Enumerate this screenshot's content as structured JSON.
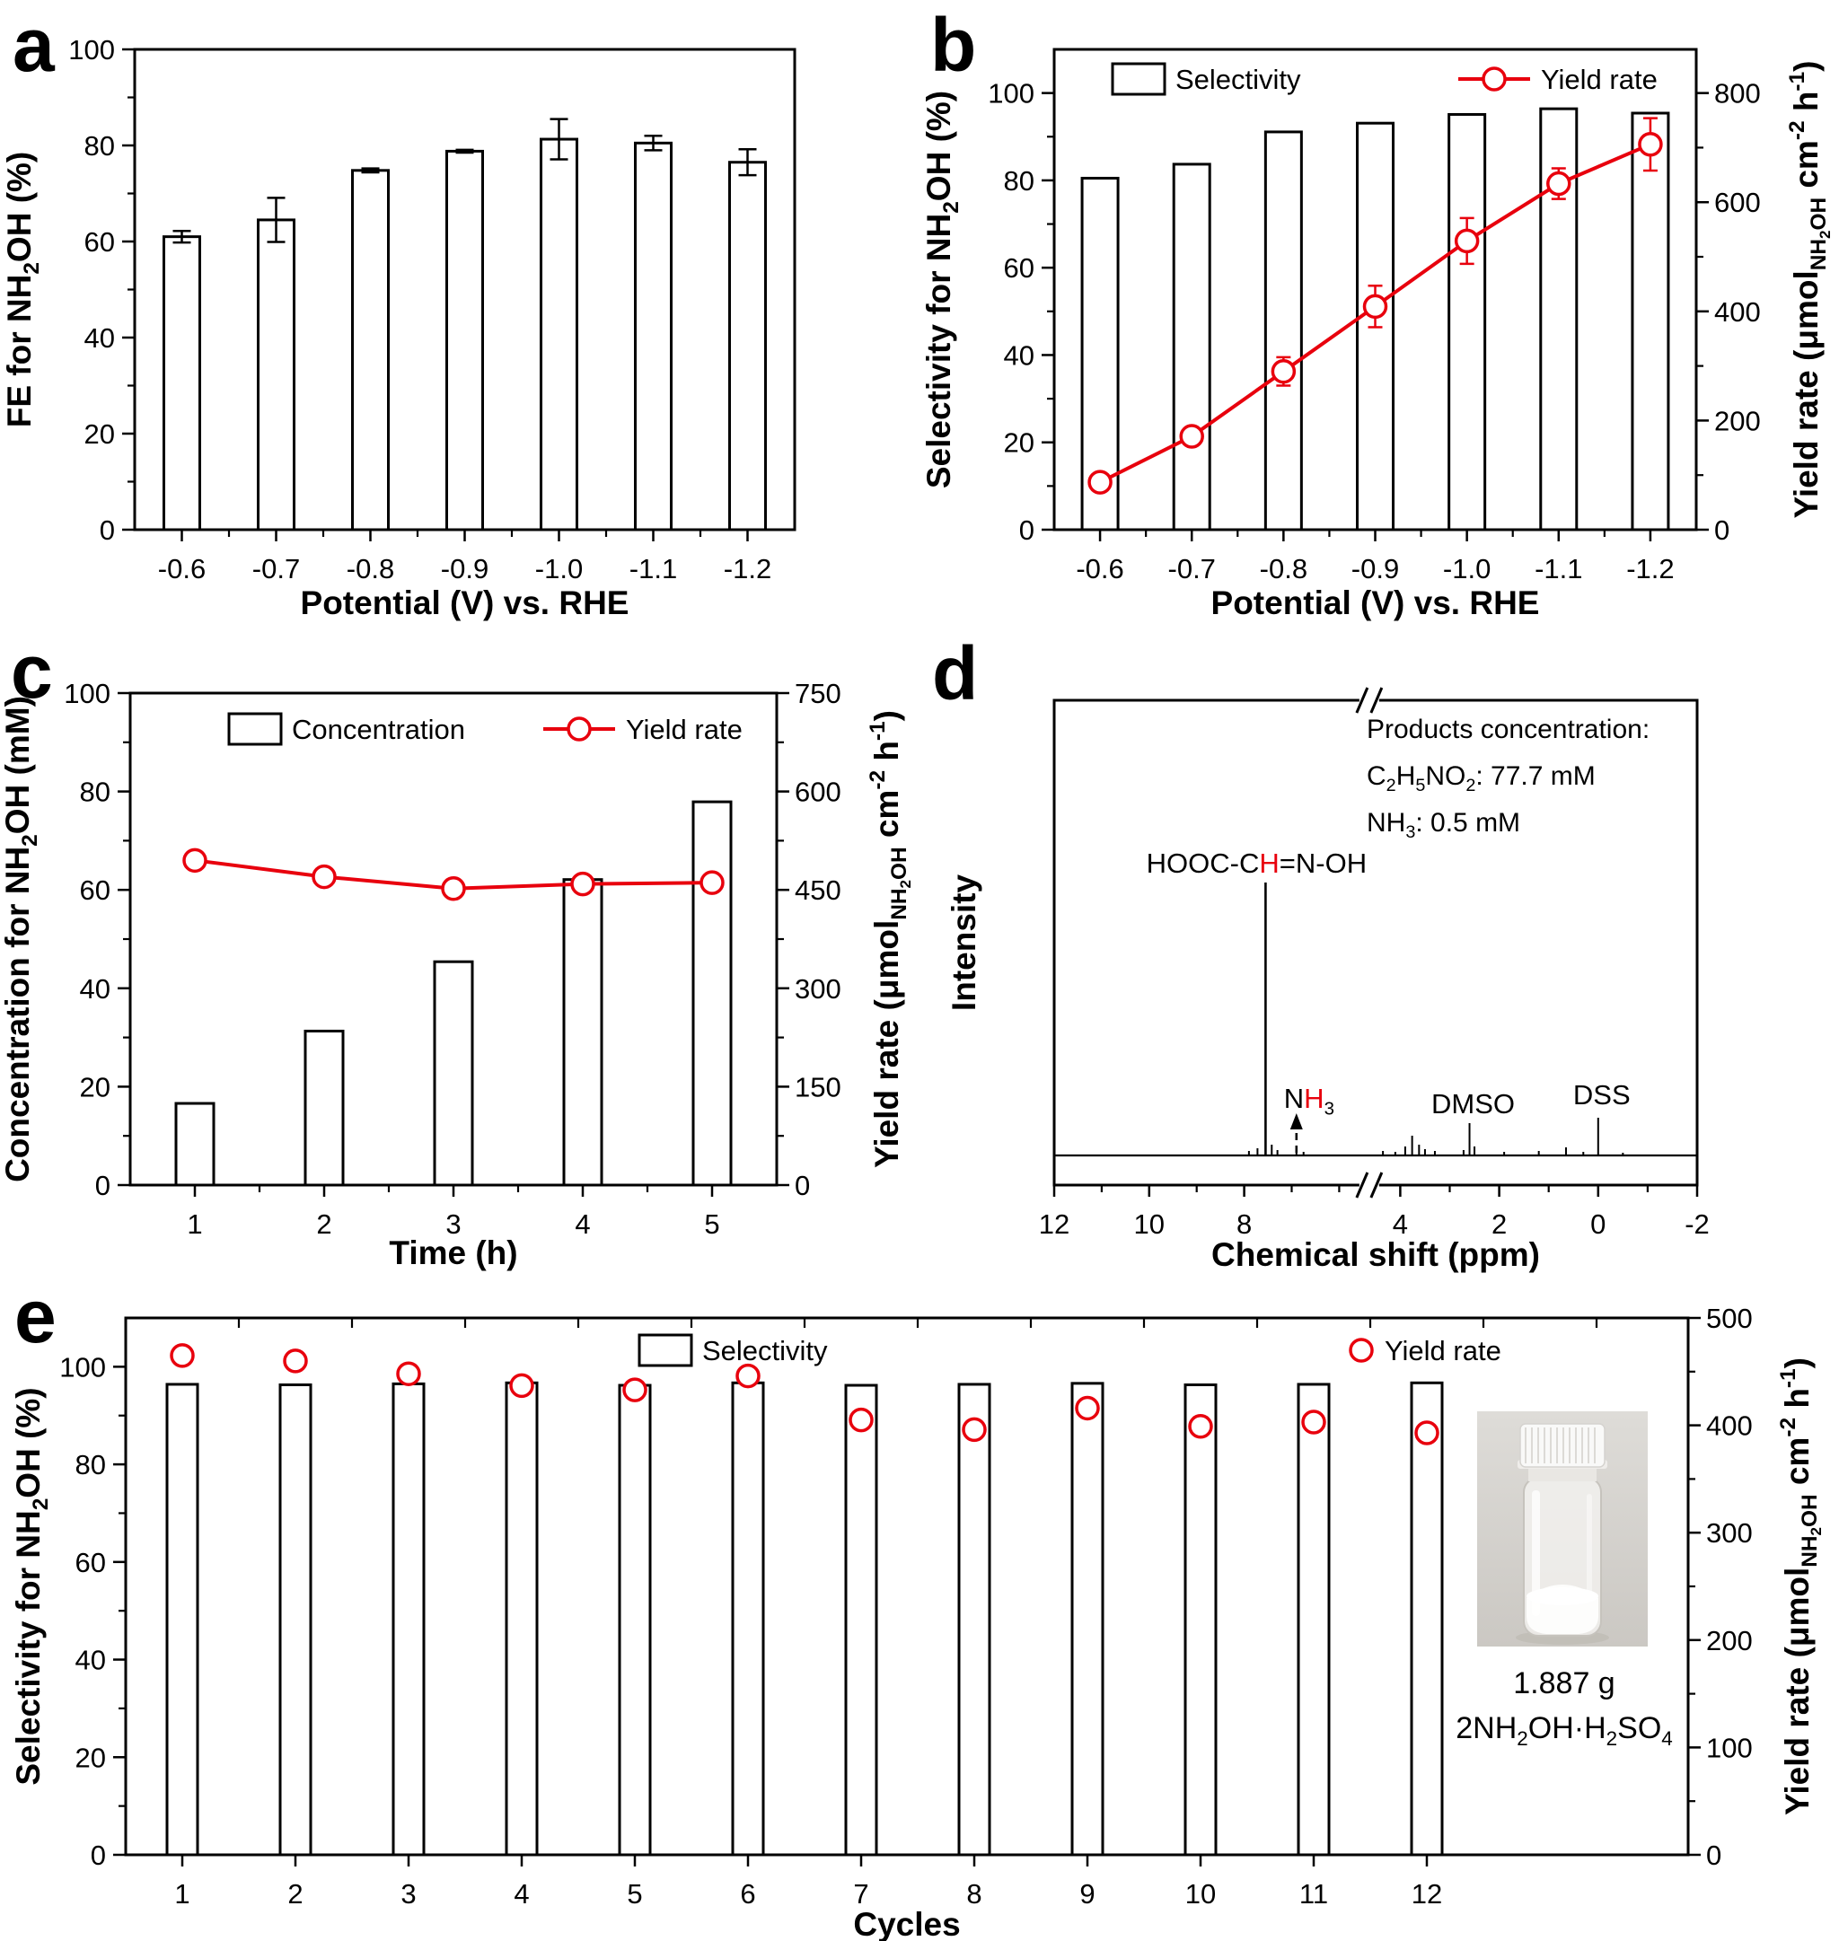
{
  "figure": {
    "background": "#ffffff",
    "black": "#000000",
    "red": "#e8000d",
    "photo_bg_top": "#dedcd8",
    "photo_bg_bottom": "#cbc8c3"
  },
  "chart_data": [
    {
      "panel_letter": "a",
      "type": "bar",
      "xlabel": "Potential (V) vs. RHE",
      "ylabel_segments": [
        {
          "t": "FE for NH"
        },
        {
          "t": "2",
          "style": "sub"
        },
        {
          "t": "OH (%)"
        }
      ],
      "categories": [
        "-0.6",
        "-0.7",
        "-0.8",
        "-0.9",
        "-1.0",
        "-1.1",
        "-1.2"
      ],
      "values": [
        61,
        64.5,
        74.8,
        78.8,
        81.3,
        80.5,
        76.5
      ],
      "errors": [
        1.2,
        4.6,
        0.4,
        0.3,
        4.2,
        1.5,
        2.7
      ],
      "ylim": [
        0,
        100
      ],
      "yticks": [
        0,
        20,
        40,
        60,
        80,
        100
      ],
      "yminor": 10
    },
    {
      "panel_letter": "b",
      "type": "bar+line",
      "xlabel": "Potential (V) vs. RHE",
      "ylabel_segments": [
        {
          "t": "Selectivity for NH"
        },
        {
          "t": "2",
          "style": "sub"
        },
        {
          "t": "OH (%)"
        }
      ],
      "y2label_segments": [
        {
          "t": "Yield rate (μmol"
        },
        {
          "t": "NH",
          "style": "sub"
        },
        {
          "t": "2",
          "style": "subsub"
        },
        {
          "t": "OH",
          "style": "sub"
        },
        {
          "t": " cm"
        },
        {
          "t": "-2",
          "style": "sup"
        },
        {
          "t": " h"
        },
        {
          "t": "-1",
          "style": "sup"
        },
        {
          "t": ")"
        }
      ],
      "categories": [
        "-0.6",
        "-0.7",
        "-0.8",
        "-0.9",
        "-1.0",
        "-1.1",
        "-1.2"
      ],
      "legend": [
        {
          "label": "Selectivity",
          "marker": "bar"
        },
        {
          "label": "Yield rate",
          "marker": "line"
        }
      ],
      "bars": [
        80.5,
        83.7,
        91.1,
        93.1,
        95.1,
        96.4,
        95.4
      ],
      "line": [
        87,
        171,
        290,
        409,
        529,
        634,
        706
      ],
      "line_errors": [
        12,
        16,
        26,
        38,
        42,
        28,
        48
      ],
      "ylim": [
        0,
        110
      ],
      "yticks": [
        0,
        20,
        40,
        60,
        80,
        100
      ],
      "yminor": 10,
      "y2lim": [
        0,
        880
      ],
      "y2ticks": [
        0,
        200,
        400,
        600,
        800
      ],
      "y2minor": 100
    },
    {
      "panel_letter": "c",
      "type": "bar+line",
      "xlabel": "Time (h)",
      "ylabel_segments": [
        {
          "t": "Concentration for NH"
        },
        {
          "t": "2",
          "style": "sub"
        },
        {
          "t": "OH (mM)"
        }
      ],
      "y2label_segments": [
        {
          "t": "Yield rate (μmol"
        },
        {
          "t": "NH",
          "style": "sub"
        },
        {
          "t": "2",
          "style": "subsub"
        },
        {
          "t": "OH",
          "style": "sub"
        },
        {
          "t": " cm"
        },
        {
          "t": "-2",
          "style": "sup"
        },
        {
          "t": " h"
        },
        {
          "t": "-1",
          "style": "sup"
        },
        {
          "t": ")"
        }
      ],
      "categories": [
        "1",
        "2",
        "3",
        "4",
        "5"
      ],
      "legend": [
        {
          "label": "Concentration",
          "marker": "bar"
        },
        {
          "label": "Yield rate",
          "marker": "line"
        }
      ],
      "bars": [
        16.6,
        31.3,
        45.4,
        62.1,
        77.9
      ],
      "line": [
        495,
        470,
        452,
        459,
        461
      ],
      "line_errors": [
        0,
        0,
        0,
        0,
        0
      ],
      "ylim": [
        0,
        100
      ],
      "yticks": [
        0,
        20,
        40,
        60,
        80,
        100
      ],
      "yminor": 10,
      "y2lim": [
        0,
        750
      ],
      "y2ticks": [
        0,
        150,
        300,
        450,
        600,
        750
      ],
      "y2minor": 75
    },
    {
      "panel_letter": "d",
      "type": "nmr",
      "xlabel": "Chemical shift (ppm)",
      "ylabel": "Intensity",
      "xticks_left": [
        12,
        10,
        8
      ],
      "xminor_left": [
        11,
        9,
        7,
        6
      ],
      "xticks_right": [
        4,
        2,
        0,
        -2
      ],
      "xminor_right": [
        3,
        1,
        -1
      ],
      "axis_break": {
        "left_ppm_end": 5.5,
        "right_ppm_start": 4.5
      },
      "annotation_lines": [
        [
          {
            "t": "Products  concentration:"
          }
        ],
        [
          {
            "t": "C"
          },
          {
            "t": "2",
            "style": "sub"
          },
          {
            "t": "H"
          },
          {
            "t": "5",
            "style": "sub"
          },
          {
            "t": "NO"
          },
          {
            "t": "2",
            "style": "sub"
          },
          {
            "t": ": 77.7 mM"
          }
        ],
        [
          {
            "t": "NH"
          },
          {
            "t": "3",
            "style": "sub"
          },
          {
            "t": ": 0.5 mM"
          }
        ]
      ],
      "peak_label_segments": [
        {
          "t": "HOOC-C"
        },
        {
          "t": "H",
          "color": "#e8000d"
        },
        {
          "t": "=N-OH"
        }
      ],
      "nh3_label_segments": [
        {
          "t": "N"
        },
        {
          "t": "H",
          "color": "#e8000d"
        },
        {
          "t": "3",
          "style": "sub"
        }
      ],
      "dmso_label": "DMSO",
      "dss_label": "DSS",
      "main_peak_ppm": 7.55,
      "arrow_ppm": 6.9,
      "dmso_ppm": 2.6,
      "dss_ppm": 0,
      "peaks": [
        [
          7.9,
          5
        ],
        [
          7.72,
          8
        ],
        [
          7.55,
          304
        ],
        [
          7.42,
          12
        ],
        [
          7.3,
          6
        ],
        [
          6.9,
          6
        ],
        [
          6.75,
          4
        ],
        [
          4.35,
          5
        ],
        [
          4.1,
          4
        ],
        [
          3.9,
          10
        ],
        [
          3.76,
          22
        ],
        [
          3.62,
          12
        ],
        [
          3.5,
          7
        ],
        [
          3.3,
          5
        ],
        [
          2.72,
          6
        ],
        [
          2.6,
          36
        ],
        [
          2.5,
          10
        ],
        [
          1.9,
          4
        ],
        [
          1.2,
          5
        ],
        [
          0.65,
          9
        ],
        [
          0.3,
          4
        ],
        [
          0,
          42
        ],
        [
          -0.5,
          3
        ]
      ]
    },
    {
      "panel_letter": "e",
      "type": "bar+scatter",
      "xlabel": "Cycles",
      "ylabel_segments": [
        {
          "t": "Selectivity for NH"
        },
        {
          "t": "2",
          "style": "sub"
        },
        {
          "t": "OH (%)"
        }
      ],
      "y2label_segments": [
        {
          "t": "Yield rate (μmol"
        },
        {
          "t": "NH",
          "style": "sub"
        },
        {
          "t": "2",
          "style": "subsub"
        },
        {
          "t": "OH",
          "style": "sub"
        },
        {
          "t": " cm"
        },
        {
          "t": "-2",
          "style": "sup"
        },
        {
          "t": " h"
        },
        {
          "t": "-1",
          "style": "sup"
        },
        {
          "t": ")"
        }
      ],
      "categories": [
        "1",
        "2",
        "3",
        "4",
        "5",
        "6",
        "7",
        "8",
        "9",
        "10",
        "11",
        "12"
      ],
      "legend": [
        {
          "label": "Selectivity",
          "marker": "bar"
        },
        {
          "label": "Yield rate",
          "marker": "scatter"
        }
      ],
      "bars": [
        96.4,
        96.3,
        96.5,
        96.7,
        96.2,
        96.7,
        96.2,
        96.4,
        96.6,
        96.3,
        96.4,
        96.7
      ],
      "scatter": [
        465,
        460,
        448,
        437,
        433,
        446,
        405,
        396,
        416,
        399,
        403,
        393
      ],
      "ylim": [
        0,
        110
      ],
      "yticks": [
        0,
        20,
        40,
        60,
        80,
        100
      ],
      "yminor": 10,
      "y2lim": [
        0,
        500
      ],
      "y2ticks": [
        0,
        100,
        200,
        300,
        400,
        500
      ],
      "y2minor": 50,
      "inset": {
        "caption1": "1.887 g",
        "caption2_segments": [
          {
            "t": "2NH"
          },
          {
            "t": "2",
            "style": "sub"
          },
          {
            "t": "OH·H"
          },
          {
            "t": "2",
            "style": "sub"
          },
          {
            "t": "SO"
          },
          {
            "t": "4",
            "style": "sub"
          }
        ]
      }
    }
  ]
}
